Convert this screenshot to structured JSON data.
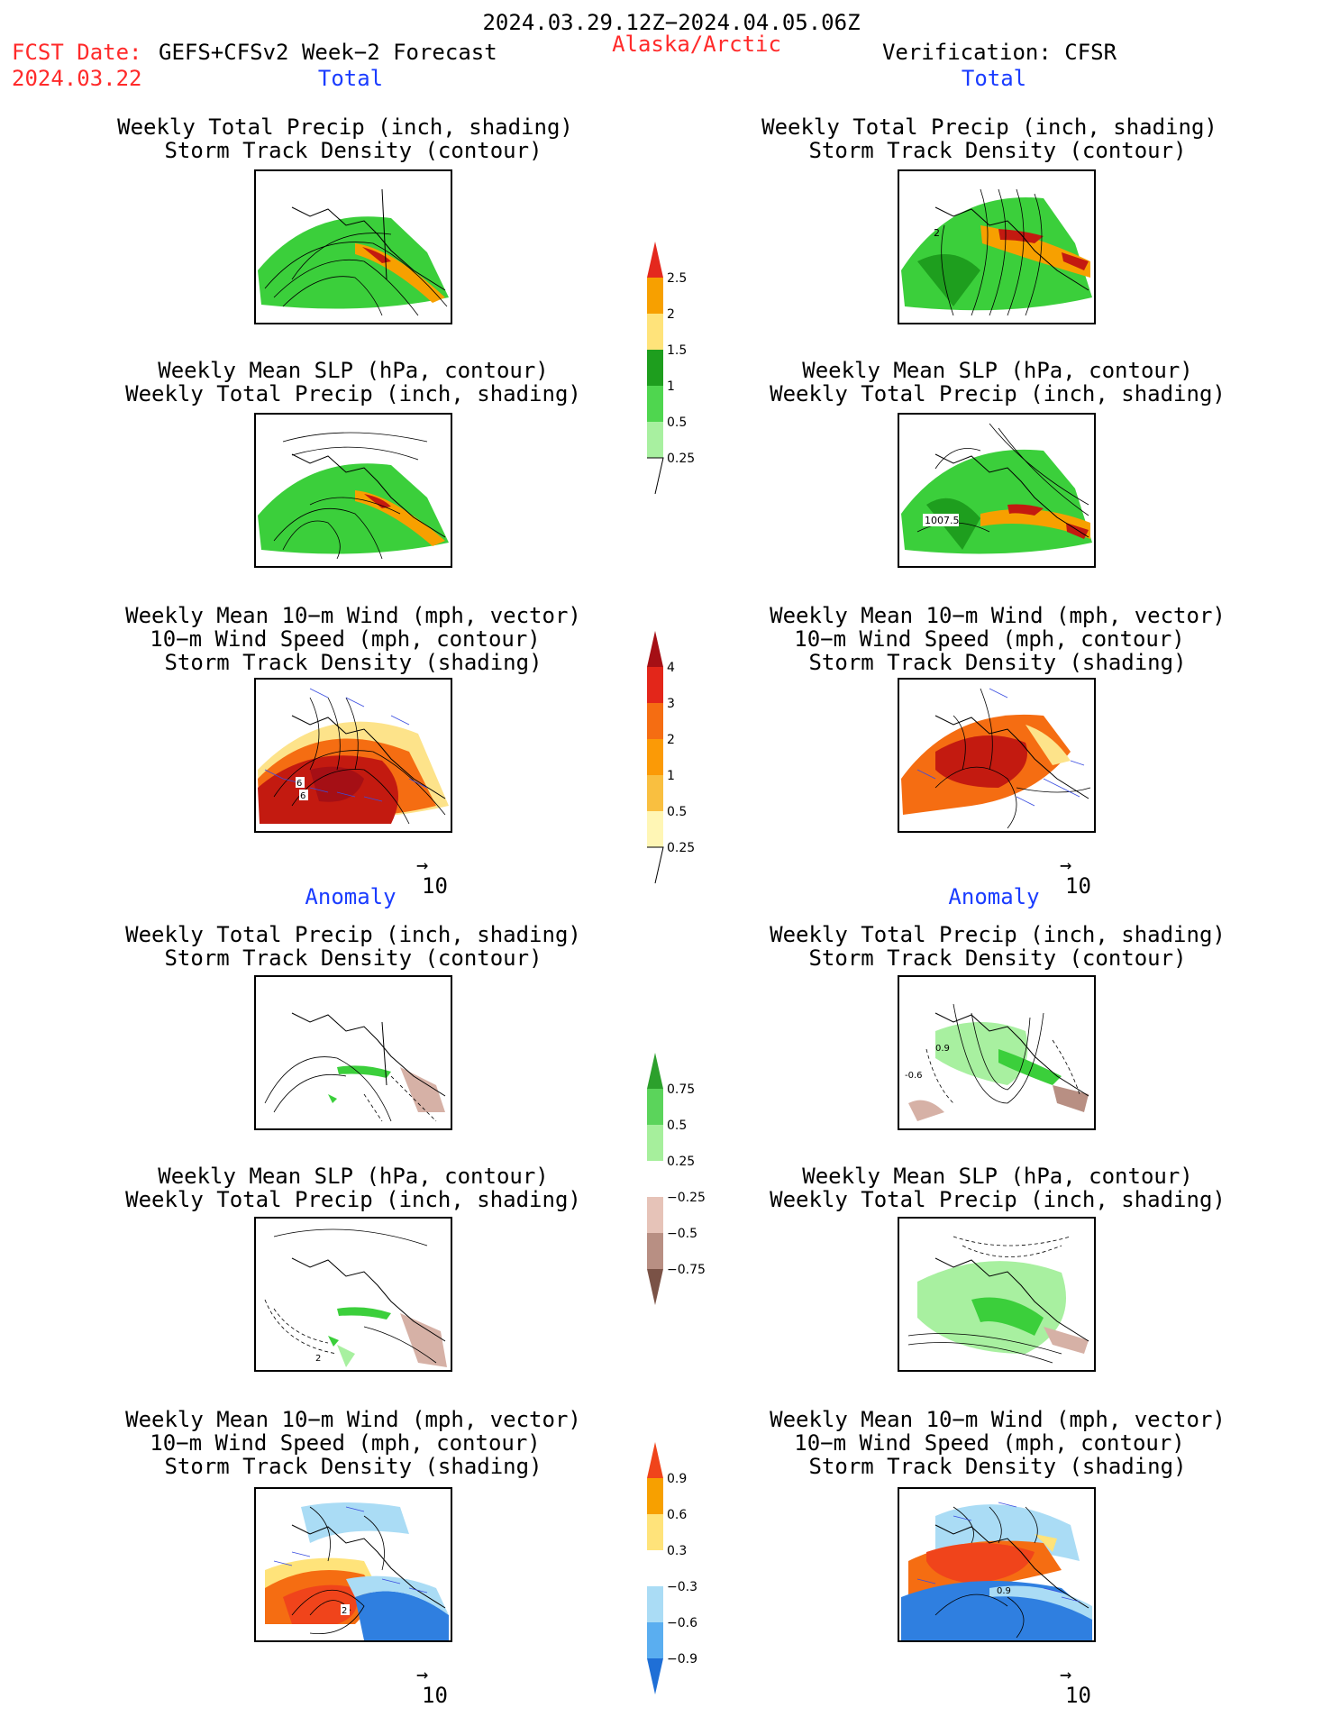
{
  "header": {
    "period": "2024.03.29.12Z−2024.04.05.06Z",
    "fcst_label": "FCST Date:",
    "fcst_model": "GEFS+CFSv2 Week−2 Forecast",
    "fcst_date": "2024.03.22",
    "region": "Alaska/Arctic",
    "verification": "Verification: CFSR"
  },
  "sections": {
    "total_left": "Total",
    "total_right": "Total",
    "anomaly_left": "Anomaly",
    "anomaly_right": "Anomaly"
  },
  "titles": {
    "precip_storm": [
      "Weekly Total Precip (inch, shading)",
      "Storm Track Density (contour)"
    ],
    "slp_precip": [
      "Weekly Mean SLP (hPa, contour)",
      "Weekly Total Precip (inch, shading)"
    ],
    "wind_storm": [
      "Weekly Mean 10−m Wind (mph, vector)",
      "10−m Wind Speed (mph, contour)",
      "Storm Track Density (shading)"
    ]
  },
  "panel_labels": {
    "right_precip_contour": "2",
    "right_slp_contour": "1007.5",
    "left_wind_contour_a": "6",
    "left_wind_contour_b": "6",
    "right_anom_contour_a": "0.9",
    "right_anom_contour_b": "-0.6",
    "left_anom_slp_contour": "2",
    "left_anom_wind_contour": "2",
    "right_anom_wind_contour": "0.9"
  },
  "vector_scale": {
    "arrow": "→",
    "value": "10"
  },
  "colorbars": {
    "precip_total": {
      "ticks": [
        "2.5",
        "2",
        "1.5",
        "1",
        "0.5",
        "0.25"
      ],
      "colors": [
        "#e4281e",
        "#f7a000",
        "#ffe37a",
        "#1e9e1e",
        "#4fd64f",
        "#a8f0a0"
      ]
    },
    "storm_total": {
      "ticks": [
        "4",
        "3",
        "2",
        "1",
        "0.5",
        "0.25"
      ],
      "colors": [
        "#a50f15",
        "#e3261a",
        "#f56d12",
        "#fb9a06",
        "#f9bf40",
        "#fde38a",
        "#fff6b5"
      ]
    },
    "precip_anom": {
      "ticks": [
        "0.75",
        "0.5",
        "0.25",
        "−0.25",
        "−0.5",
        "−0.75"
      ],
      "colors": [
        "#2ca02c",
        "#5bd45b",
        "#a6ef9c",
        "#ffffff",
        "#e6c3b8",
        "#b88f83",
        "#7a5246"
      ]
    },
    "storm_anom": {
      "ticks": [
        "0.9",
        "0.6",
        "0.3",
        "−0.3",
        "−0.6",
        "−0.9"
      ],
      "colors": [
        "#f0441b",
        "#f7a000",
        "#ffe37a",
        "#ffffff",
        "#aadcf5",
        "#5aaef0",
        "#1f6fd6"
      ]
    }
  },
  "colors": {
    "precip_green": "#3bcf3b",
    "precip_dark": "#1e9e1e",
    "storm_red": "#c31a10",
    "storm_orange": "#f56d12",
    "storm_yellow": "#fde38a",
    "anom_blue": "#2f7fe0",
    "anom_lightblue": "#aadcf5",
    "anom_brown": "#d6b1a6"
  }
}
